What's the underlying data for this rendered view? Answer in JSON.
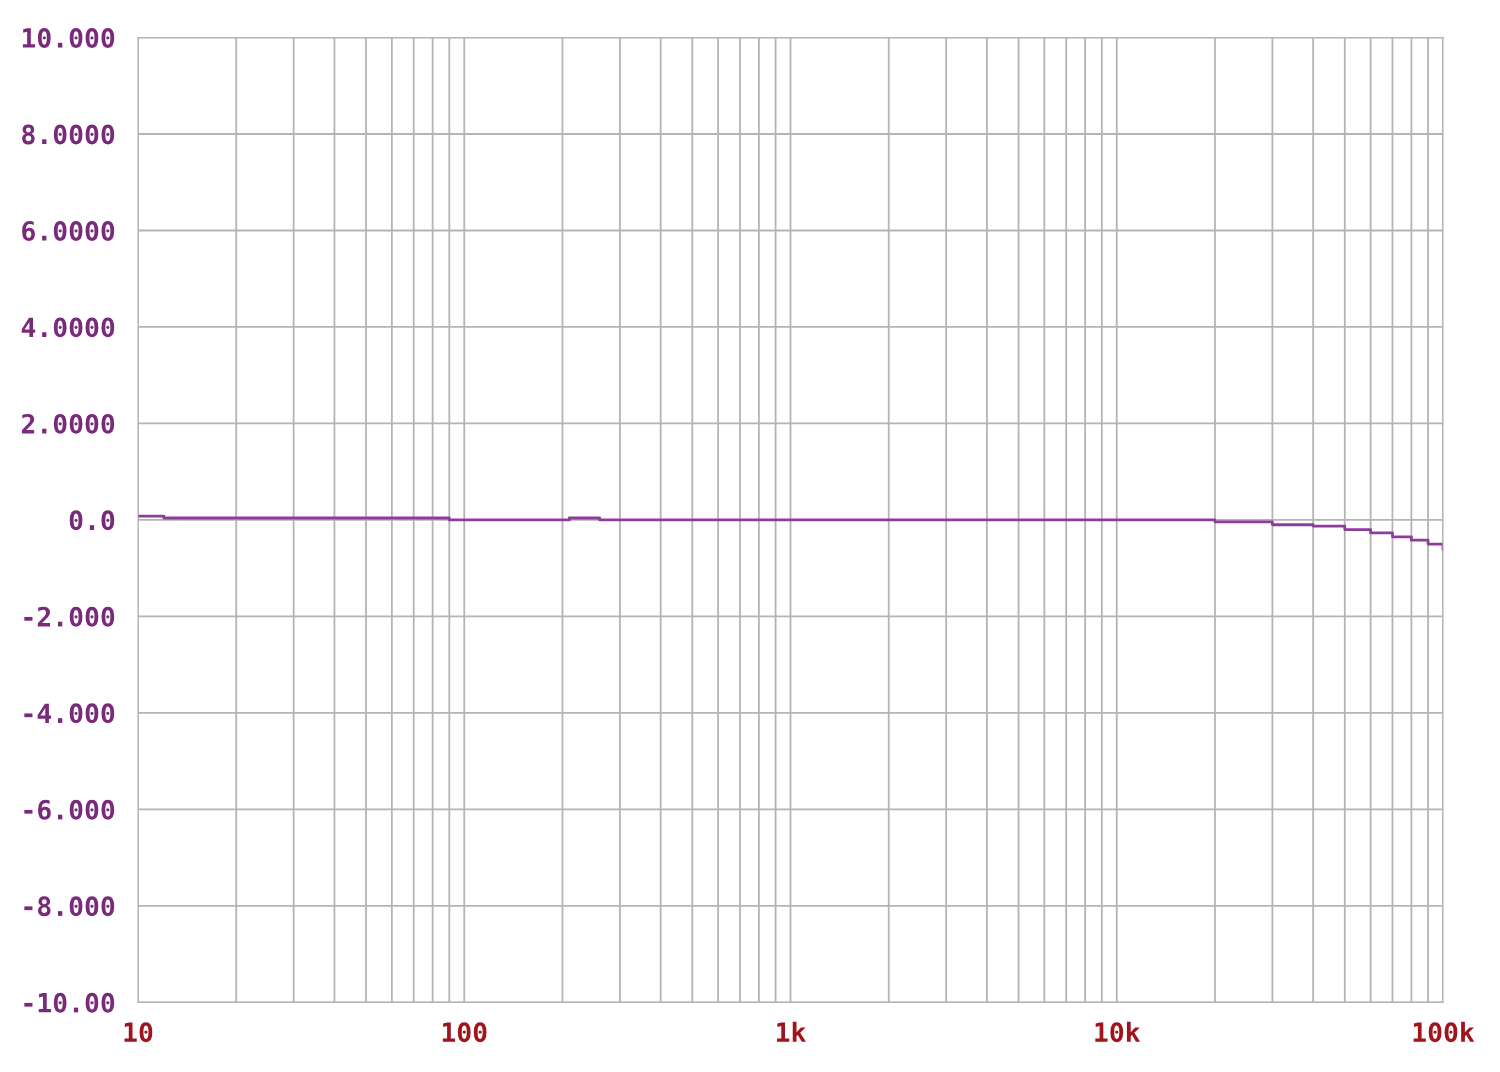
{
  "chart_data": {
    "type": "line",
    "log": "x",
    "grid": true,
    "xlim": [
      10,
      100000
    ],
    "ylim": [
      -10,
      10
    ],
    "xticks": [
      10,
      100,
      {
        "value": 1000,
        "label": "1k"
      },
      {
        "value": 10000,
        "label": "10k"
      },
      {
        "value": 100000,
        "label": "100k"
      }
    ],
    "yticks": [
      {
        "value": 10,
        "label": "10.000"
      },
      {
        "value": 8,
        "label": "8.0000"
      },
      {
        "value": 6,
        "label": "6.0000"
      },
      {
        "value": 4,
        "label": "4.0000"
      },
      {
        "value": 2,
        "label": "2.0000"
      },
      {
        "value": 0,
        "label": "0.0"
      },
      {
        "value": -2,
        "label": "-2.000"
      },
      {
        "value": -4,
        "label": "-4.000"
      },
      {
        "value": -6,
        "label": "-6.000"
      },
      {
        "value": -8,
        "label": "-8.000"
      },
      {
        "value": -10,
        "label": "-10.00"
      }
    ],
    "series": [
      {
        "color": "#8e3c9c",
        "x": [
          10,
          11,
          12,
          20,
          50,
          80,
          90,
          100,
          200,
          210,
          250,
          260,
          300,
          1000,
          5000,
          10000,
          18000,
          20000,
          30000,
          40000,
          50000,
          60000,
          70000,
          80000,
          90000,
          100000
        ],
        "values": [
          0.08,
          0.08,
          0.04,
          0.04,
          0.04,
          0.04,
          0.0,
          0.0,
          0.0,
          0.04,
          0.04,
          0.0,
          0.0,
          0.0,
          0.0,
          0.0,
          0.0,
          -0.04,
          -0.1,
          -0.13,
          -0.2,
          -0.27,
          -0.35,
          -0.42,
          -0.5,
          -0.62
        ]
      }
    ]
  }
}
